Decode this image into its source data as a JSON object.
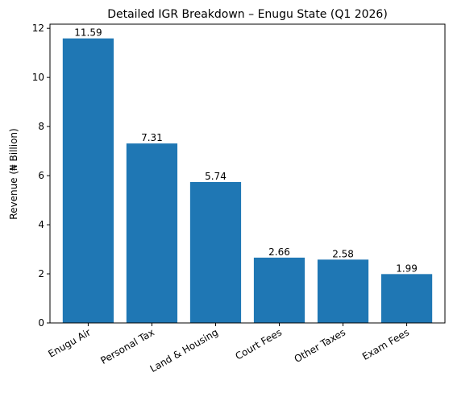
{
  "chart_data": {
    "type": "bar",
    "title": "Detailed IGR Breakdown – Enugu State (Q1 2026)",
    "y_label": "Revenue (₦ Billion)",
    "categories": [
      "Enugu Air",
      "Personal Tax",
      "Land & Housing",
      "Court Fees",
      "Other Taxes",
      "Exam Fees"
    ],
    "values": [
      11.59,
      7.31,
      5.74,
      2.66,
      2.58,
      1.99
    ],
    "color": "#1f77b4",
    "ylim": [
      0,
      12.17
    ],
    "yticks": [
      0,
      2,
      4,
      6,
      8,
      10,
      12
    ],
    "grid": false
  }
}
